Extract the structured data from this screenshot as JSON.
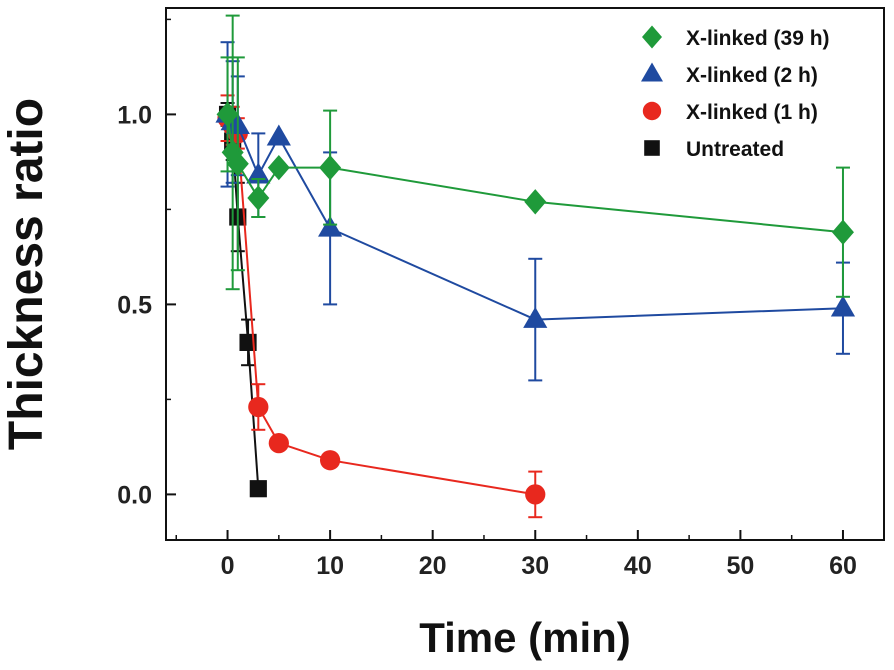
{
  "chart_data": {
    "type": "line",
    "title": "",
    "xlabel": "Time (min)",
    "ylabel": "Thickness ratio",
    "xlim": [
      -6,
      64
    ],
    "ylim": [
      -0.12,
      1.28
    ],
    "x_ticks": [
      0,
      10,
      20,
      30,
      40,
      50,
      60
    ],
    "x_tick_labels": [
      "0",
      "10",
      "20",
      "30",
      "40",
      "50",
      "60"
    ],
    "y_ticks": [
      0.0,
      0.5,
      1.0
    ],
    "y_tick_labels": [
      "0.0",
      "0.5",
      "1.0"
    ],
    "grid": false,
    "legend_position": "top-right",
    "series": [
      {
        "name": "X-linked (39 h)",
        "color": "#1f9a3a",
        "marker": "diamond",
        "points": [
          {
            "x": 0,
            "y": 1.0,
            "err": 0.15
          },
          {
            "x": 0.5,
            "y": 0.9,
            "err": 0.36
          },
          {
            "x": 1,
            "y": 0.87,
            "err": 0.28
          },
          {
            "x": 3,
            "y": 0.78,
            "err": 0.05
          },
          {
            "x": 5,
            "y": 0.86,
            "err": 0.0
          },
          {
            "x": 10,
            "y": 0.86,
            "err": 0.15
          },
          {
            "x": 30,
            "y": 0.77,
            "err": 0.0
          },
          {
            "x": 60,
            "y": 0.69,
            "err": 0.17
          }
        ]
      },
      {
        "name": "X-linked (2 h)",
        "color": "#1f4aa0",
        "marker": "triangle",
        "points": [
          {
            "x": 0,
            "y": 1.0,
            "err": 0.19
          },
          {
            "x": 0.5,
            "y": 0.98,
            "err": 0.16
          },
          {
            "x": 1,
            "y": 0.97,
            "err": 0.13
          },
          {
            "x": 3,
            "y": 0.84,
            "err": 0.11
          },
          {
            "x": 5,
            "y": 0.94,
            "err": 0.0
          },
          {
            "x": 10,
            "y": 0.7,
            "err": 0.2
          },
          {
            "x": 30,
            "y": 0.46,
            "err": 0.16
          },
          {
            "x": 60,
            "y": 0.49,
            "err": 0.12
          }
        ]
      },
      {
        "name": "X-linked (1 h)",
        "color": "#e8281e",
        "marker": "circle",
        "points": [
          {
            "x": 0,
            "y": 0.99,
            "err": 0.06
          },
          {
            "x": 0.5,
            "y": 0.97,
            "err": 0.05
          },
          {
            "x": 1,
            "y": 0.95,
            "err": 0.04
          },
          {
            "x": 3,
            "y": 0.23,
            "err": 0.06
          },
          {
            "x": 5,
            "y": 0.135,
            "err": 0.0
          },
          {
            "x": 10,
            "y": 0.09,
            "err": 0.0
          },
          {
            "x": 30,
            "y": 0.0,
            "err": 0.06
          }
        ]
      },
      {
        "name": "Untreated",
        "color": "#111111",
        "marker": "square",
        "points": [
          {
            "x": 0,
            "y": 1.0,
            "err": 0.03
          },
          {
            "x": 0.5,
            "y": 0.93,
            "err": 0.05
          },
          {
            "x": 1,
            "y": 0.73,
            "err": 0.09
          },
          {
            "x": 2,
            "y": 0.4,
            "err": 0.06
          },
          {
            "x": 3,
            "y": 0.015,
            "err": 0.0
          }
        ]
      }
    ]
  }
}
